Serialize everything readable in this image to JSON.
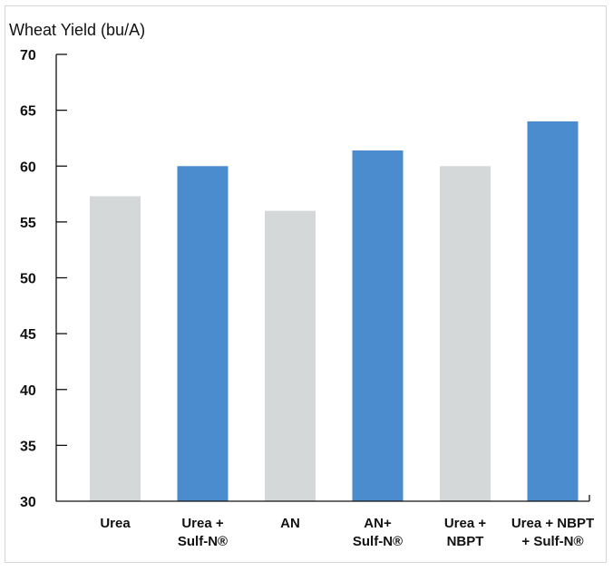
{
  "chart_data": {
    "type": "bar",
    "title": "",
    "ylabel": "Wheat Yield (bu/A)",
    "xlabel": "",
    "ylim": [
      30,
      70
    ],
    "yticks": [
      30,
      35,
      40,
      45,
      50,
      55,
      60,
      65,
      70
    ],
    "grid": false,
    "categories": [
      [
        "Urea"
      ],
      [
        "Urea +",
        "Sulf-N®"
      ],
      [
        "AN"
      ],
      [
        "AN+",
        "Sulf-N®"
      ],
      [
        "Urea +",
        "NBPT"
      ],
      [
        "Urea + NBPT",
        "+ Sulf-N®"
      ]
    ],
    "values": [
      57.3,
      60.0,
      56.0,
      61.4,
      60.0,
      64.0
    ],
    "bar_colors": [
      "#d4d8d8",
      "#4a8ccd",
      "#d4d8d8",
      "#4a8ccd",
      "#d4d8d8",
      "#4a8ccd"
    ]
  }
}
